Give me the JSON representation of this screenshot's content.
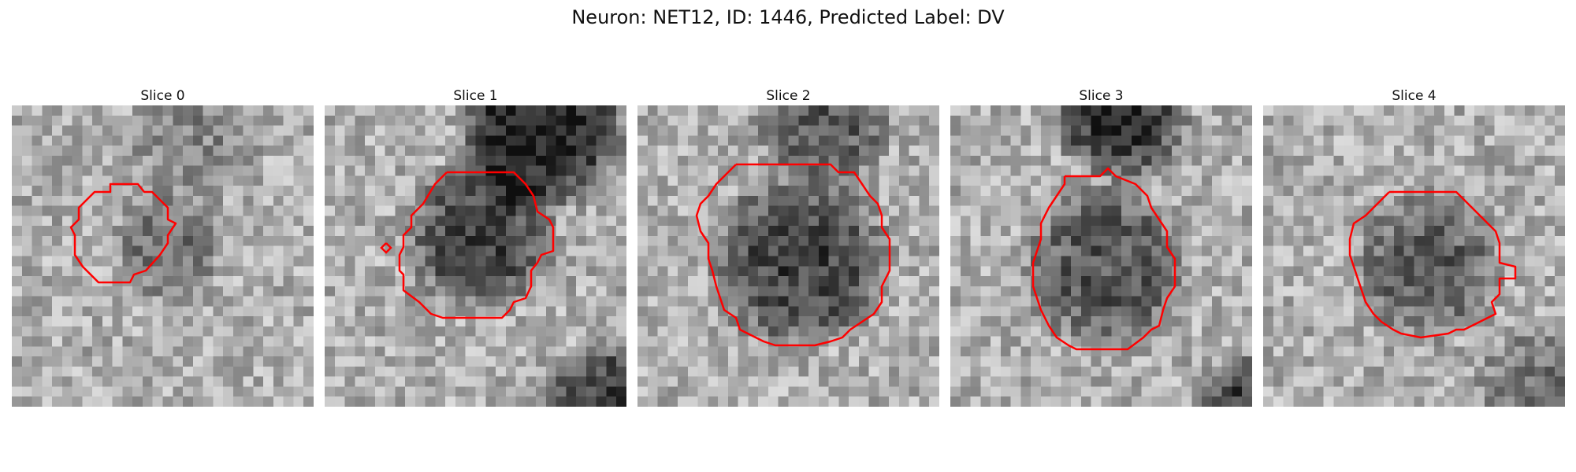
{
  "figure": {
    "title": "Neuron: NET12, ID: 1446, Predicted Label: DV"
  },
  "contour_color": "#ff0000",
  "panels": [
    {
      "title": "Slice 0"
    },
    {
      "title": "Slice 1"
    },
    {
      "title": "Slice 2"
    },
    {
      "title": "Slice 3"
    },
    {
      "title": "Slice 4"
    }
  ]
}
